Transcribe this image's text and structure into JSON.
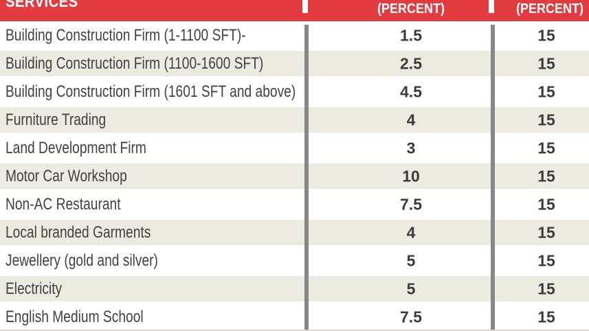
{
  "table": {
    "header": {
      "services_label": "SERVICES",
      "col1_label": "(PERCENT)",
      "col2_label": "(PERCENT)"
    },
    "rows": [
      {
        "service": "Building Construction Firm (1-1100 SFT)-",
        "percent1": "1.5",
        "percent2": "15"
      },
      {
        "service": "Building Construction Firm (1100-1600 SFT)",
        "percent1": "2.5",
        "percent2": "15"
      },
      {
        "service": "Building Construction Firm (1601 SFT and above)",
        "percent1": "4.5",
        "percent2": "15"
      },
      {
        "service": "Furniture Trading",
        "percent1": "4",
        "percent2": "15"
      },
      {
        "service": "Land Development Firm",
        "percent1": "3",
        "percent2": "15"
      },
      {
        "service": "Motor Car Workshop",
        "percent1": "10",
        "percent2": "15"
      },
      {
        "service": "Non-AC Restaurant",
        "percent1": "7.5",
        "percent2": "15"
      },
      {
        "service": "Local branded Garments",
        "percent1": "4",
        "percent2": "15"
      },
      {
        "service": "Jewellery (gold and silver)",
        "percent1": "5",
        "percent2": "15"
      },
      {
        "service": "Electricity",
        "percent1": "5",
        "percent2": "15"
      },
      {
        "service": "English Medium School",
        "percent1": "7.5",
        "percent2": "15"
      }
    ],
    "colors": {
      "header_red": "#e23c40",
      "row_alt_beige": "#ecebdf",
      "divider_gray": "#85878a",
      "text_dark": "#414043",
      "header_text": "#ffffff"
    }
  }
}
